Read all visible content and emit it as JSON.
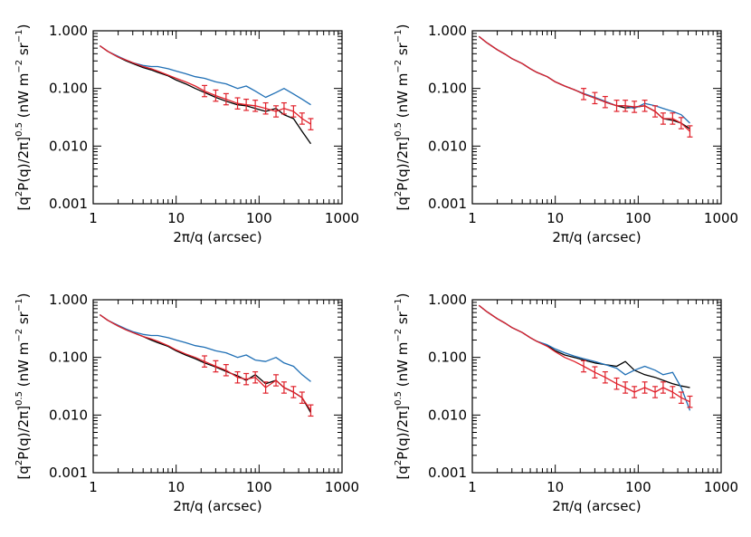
{
  "colors": {
    "black": "#000000",
    "blue": "#1f6fb5",
    "red": "#e0202a"
  },
  "chart_data": [
    {
      "type": "line",
      "xlabel": "2π/q (arcsec)",
      "ylabel_parts": [
        "[q",
        "2",
        "P(q)/2π]",
        "0.5",
        " (nW m",
        "−2",
        " sr",
        "−1",
        ")"
      ],
      "xscale": "log",
      "yscale": "log",
      "xlim": [
        1,
        1000
      ],
      "ylim": [
        0.001,
        1.0
      ],
      "x_ticks": [
        1,
        10,
        100,
        1000
      ],
      "x_tick_labels": [
        "1",
        "10",
        "100",
        "1000"
      ],
      "y_ticks": [
        0.001,
        0.01,
        0.1,
        1.0
      ],
      "y_tick_labels": [
        "0.001",
        "0.010",
        "0.100",
        "1.000"
      ],
      "grid": false,
      "series": [
        {
          "color": "#000000",
          "x": [
            1.2,
            1.5,
            2,
            2.5,
            3,
            4,
            5,
            6,
            8,
            10,
            13,
            17,
            22,
            30,
            40,
            55,
            70,
            90,
            120,
            160,
            200,
            260,
            330,
            420
          ],
          "y": [
            0.55,
            0.44,
            0.35,
            0.3,
            0.27,
            0.23,
            0.21,
            0.19,
            0.165,
            0.14,
            0.12,
            0.1,
            0.085,
            0.07,
            0.06,
            0.052,
            0.05,
            0.045,
            0.04,
            0.045,
            0.035,
            0.03,
            0.018,
            0.011
          ]
        },
        {
          "color": "#1f6fb5",
          "x": [
            1.2,
            1.5,
            2,
            2.5,
            3,
            4,
            5,
            6,
            8,
            10,
            13,
            17,
            22,
            30,
            40,
            55,
            70,
            90,
            120,
            160,
            200,
            260,
            330,
            420
          ],
          "y": [
            0.55,
            0.44,
            0.36,
            0.31,
            0.28,
            0.25,
            0.24,
            0.24,
            0.22,
            0.2,
            0.18,
            0.16,
            0.15,
            0.13,
            0.12,
            0.1,
            0.11,
            0.09,
            0.07,
            0.085,
            0.1,
            0.08,
            0.065,
            0.052
          ]
        },
        {
          "color": "#e0202a",
          "errorbars": true,
          "x": [
            1.2,
            1.5,
            2,
            2.5,
            3,
            4,
            5,
            6,
            8,
            10,
            13,
            17,
            22,
            30,
            40,
            55,
            70,
            90,
            120,
            160,
            200,
            260,
            330,
            420
          ],
          "y": [
            0.55,
            0.44,
            0.35,
            0.31,
            0.28,
            0.24,
            0.22,
            0.2,
            0.17,
            0.15,
            0.13,
            0.11,
            0.09,
            0.075,
            0.065,
            0.055,
            0.052,
            0.05,
            0.045,
            0.04,
            0.045,
            0.04,
            0.03,
            0.024
          ]
        }
      ]
    },
    {
      "type": "line",
      "xlabel": "2π/q (arcsec)",
      "ylabel_parts": [
        "[q",
        "2",
        "P(q)/2π]",
        "0.5",
        " (nW m",
        "−2",
        " sr",
        "−1",
        ")"
      ],
      "xscale": "log",
      "yscale": "log",
      "xlim": [
        1,
        1000
      ],
      "ylim": [
        0.001,
        1.0
      ],
      "x_ticks": [
        1,
        10,
        100,
        1000
      ],
      "x_tick_labels": [
        "1",
        "10",
        "100",
        "1000"
      ],
      "y_ticks": [
        0.001,
        0.01,
        0.1,
        1.0
      ],
      "y_tick_labels": [
        "0.001",
        "0.010",
        "0.100",
        "1.000"
      ],
      "grid": false,
      "series": [
        {
          "color": "#000000",
          "x": [
            1.2,
            1.5,
            2,
            2.5,
            3,
            4,
            5,
            6,
            8,
            10,
            13,
            17,
            22,
            30,
            40,
            55,
            70,
            90,
            120,
            160,
            200,
            260,
            330,
            420
          ],
          "y": [
            0.8,
            0.62,
            0.47,
            0.39,
            0.33,
            0.27,
            0.22,
            0.19,
            0.16,
            0.13,
            0.11,
            0.095,
            0.08,
            0.068,
            0.058,
            0.05,
            0.046,
            0.047,
            0.05,
            0.04,
            0.03,
            0.028,
            0.025,
            0.02
          ]
        },
        {
          "color": "#1f6fb5",
          "x": [
            1.2,
            1.5,
            2,
            2.5,
            3,
            4,
            5,
            6,
            8,
            10,
            13,
            17,
            22,
            30,
            40,
            55,
            70,
            90,
            120,
            160,
            200,
            260,
            330,
            420
          ],
          "y": [
            0.8,
            0.62,
            0.47,
            0.39,
            0.33,
            0.27,
            0.22,
            0.19,
            0.16,
            0.13,
            0.11,
            0.095,
            0.082,
            0.07,
            0.06,
            0.05,
            0.05,
            0.045,
            0.055,
            0.05,
            0.045,
            0.04,
            0.035,
            0.025
          ]
        },
        {
          "color": "#e0202a",
          "errorbars": true,
          "x": [
            1.2,
            1.5,
            2,
            2.5,
            3,
            4,
            5,
            6,
            8,
            10,
            13,
            17,
            22,
            30,
            40,
            55,
            70,
            90,
            120,
            160,
            200,
            260,
            330,
            420
          ],
          "y": [
            0.8,
            0.62,
            0.47,
            0.39,
            0.33,
            0.27,
            0.22,
            0.19,
            0.16,
            0.13,
            0.11,
            0.095,
            0.08,
            0.068,
            0.058,
            0.05,
            0.05,
            0.048,
            0.05,
            0.04,
            0.03,
            0.03,
            0.025,
            0.018
          ]
        }
      ]
    },
    {
      "type": "line",
      "xlabel": "2π/q (arcsec)",
      "ylabel_parts": [
        "[q",
        "2",
        "P(q)/2π]",
        "0.5",
        " (nW m",
        "−2",
        " sr",
        "−1",
        ")"
      ],
      "xscale": "log",
      "yscale": "log",
      "xlim": [
        1,
        1000
      ],
      "ylim": [
        0.001,
        1.0
      ],
      "x_ticks": [
        1,
        10,
        100,
        1000
      ],
      "x_tick_labels": [
        "1",
        "10",
        "100",
        "1000"
      ],
      "y_ticks": [
        0.001,
        0.01,
        0.1,
        1.0
      ],
      "y_tick_labels": [
        "0.001",
        "0.010",
        "0.100",
        "1.000"
      ],
      "grid": false,
      "series": [
        {
          "color": "#000000",
          "x": [
            1.2,
            1.5,
            2,
            2.5,
            3,
            4,
            5,
            6,
            8,
            10,
            13,
            17,
            22,
            30,
            40,
            55,
            70,
            90,
            120,
            160,
            200,
            260,
            330,
            420
          ],
          "y": [
            0.55,
            0.44,
            0.35,
            0.3,
            0.27,
            0.23,
            0.2,
            0.18,
            0.155,
            0.13,
            0.11,
            0.095,
            0.08,
            0.068,
            0.057,
            0.048,
            0.04,
            0.05,
            0.035,
            0.04,
            0.03,
            0.025,
            0.02,
            0.011
          ]
        },
        {
          "color": "#1f6fb5",
          "x": [
            1.2,
            1.5,
            2,
            2.5,
            3,
            4,
            5,
            6,
            8,
            10,
            13,
            17,
            22,
            30,
            40,
            55,
            70,
            90,
            120,
            160,
            200,
            260,
            330,
            420
          ],
          "y": [
            0.55,
            0.44,
            0.36,
            0.31,
            0.28,
            0.25,
            0.24,
            0.24,
            0.22,
            0.2,
            0.18,
            0.16,
            0.15,
            0.13,
            0.12,
            0.1,
            0.11,
            0.09,
            0.085,
            0.1,
            0.08,
            0.07,
            0.05,
            0.038
          ]
        },
        {
          "color": "#e0202a",
          "errorbars": true,
          "x": [
            1.2,
            1.5,
            2,
            2.5,
            3,
            4,
            5,
            6,
            8,
            10,
            13,
            17,
            22,
            30,
            40,
            55,
            70,
            90,
            120,
            160,
            200,
            260,
            330,
            420
          ],
          "y": [
            0.55,
            0.44,
            0.35,
            0.3,
            0.27,
            0.23,
            0.21,
            0.19,
            0.16,
            0.135,
            0.115,
            0.1,
            0.085,
            0.07,
            0.06,
            0.045,
            0.042,
            0.045,
            0.03,
            0.04,
            0.03,
            0.025,
            0.02,
            0.012
          ]
        }
      ]
    },
    {
      "type": "line",
      "xlabel": "2π/q (arcsec)",
      "ylabel_parts": [
        "[q",
        "2",
        "P(q)/2π]",
        "0.5",
        " (nW m",
        "−2",
        " sr",
        "−1",
        ")"
      ],
      "xscale": "log",
      "yscale": "log",
      "xlim": [
        1,
        1000
      ],
      "ylim": [
        0.001,
        1.0
      ],
      "x_ticks": [
        1,
        10,
        100,
        1000
      ],
      "x_tick_labels": [
        "1",
        "10",
        "100",
        "1000"
      ],
      "y_ticks": [
        0.001,
        0.01,
        0.1,
        1.0
      ],
      "y_tick_labels": [
        "0.001",
        "0.010",
        "0.100",
        "1.000"
      ],
      "grid": false,
      "series": [
        {
          "color": "#000000",
          "x": [
            1.2,
            1.5,
            2,
            2.5,
            3,
            4,
            5,
            6,
            8,
            10,
            13,
            17,
            22,
            30,
            40,
            55,
            70,
            90,
            120,
            160,
            200,
            260,
            330,
            420
          ],
          "y": [
            0.8,
            0.62,
            0.47,
            0.39,
            0.33,
            0.27,
            0.22,
            0.19,
            0.16,
            0.13,
            0.11,
            0.1,
            0.09,
            0.08,
            0.075,
            0.07,
            0.085,
            0.06,
            0.05,
            0.045,
            0.04,
            0.035,
            0.032,
            0.03
          ]
        },
        {
          "color": "#1f6fb5",
          "x": [
            1.2,
            1.5,
            2,
            2.5,
            3,
            4,
            5,
            6,
            8,
            10,
            13,
            17,
            22,
            30,
            40,
            55,
            70,
            90,
            120,
            160,
            200,
            260,
            330,
            420
          ],
          "y": [
            0.8,
            0.62,
            0.47,
            0.39,
            0.33,
            0.27,
            0.22,
            0.19,
            0.165,
            0.14,
            0.12,
            0.105,
            0.095,
            0.085,
            0.075,
            0.065,
            0.05,
            0.06,
            0.07,
            0.06,
            0.05,
            0.055,
            0.03,
            0.012
          ]
        },
        {
          "color": "#e0202a",
          "errorbars": true,
          "x": [
            1.2,
            1.5,
            2,
            2.5,
            3,
            4,
            5,
            6,
            8,
            10,
            13,
            17,
            22,
            30,
            40,
            55,
            70,
            90,
            120,
            160,
            200,
            260,
            330,
            420
          ],
          "y": [
            0.8,
            0.62,
            0.47,
            0.39,
            0.33,
            0.27,
            0.22,
            0.19,
            0.155,
            0.125,
            0.1,
            0.085,
            0.07,
            0.055,
            0.045,
            0.035,
            0.03,
            0.025,
            0.03,
            0.025,
            0.03,
            0.025,
            0.02,
            0.017
          ]
        }
      ]
    }
  ]
}
